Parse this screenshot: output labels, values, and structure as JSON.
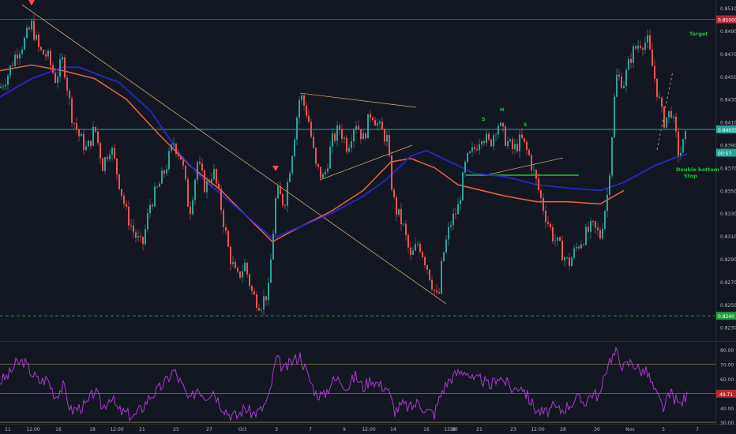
{
  "chart_data": {
    "type": "candlestick",
    "symbol_note": "",
    "price_axis": {
      "ticks": [
        0.851,
        0.849,
        0.847,
        0.845,
        0.843,
        0.841,
        0.839,
        0.837,
        0.835,
        0.833,
        0.831,
        0.829,
        0.827,
        0.825,
        0.823
      ],
      "tick_labels": [
        "0.85100",
        "0.84900",
        "0.84700",
        "0.84500",
        "0.84300",
        "0.84100",
        "0.83900",
        "0.83700",
        "0.83500",
        "0.83300",
        "0.83100",
        "0.82900",
        "0.82700",
        "0.82500",
        "0.82300"
      ],
      "range": [
        0.8218,
        0.8517
      ]
    },
    "price_badges": [
      {
        "label": "0.85000",
        "value": 0.85,
        "color": "#b22833"
      },
      {
        "label": "0.84035",
        "value": 0.84035,
        "color": "#26a69a"
      },
      {
        "label": "00:57",
        "value": 0.839,
        "color": "#26a69a"
      },
      {
        "label": "0.8240",
        "value": 0.824,
        "color": "#1f9e3a"
      }
    ],
    "levels": [
      {
        "name": "target-level",
        "value": 0.85,
        "color": "#b22833",
        "style": "solid"
      },
      {
        "name": "current-price-level",
        "value": 0.84035,
        "color": "#26a69a",
        "style": "solid"
      },
      {
        "name": "stop-level",
        "value": 0.824,
        "color": "#1f9e3a",
        "style": "dashed"
      }
    ],
    "x_axis_labels": [
      "11",
      "12:00",
      "16",
      "18",
      "12:00",
      "21",
      "25",
      "27",
      "Oct",
      "3",
      "7",
      "9",
      "12:00",
      "14",
      "16",
      "18",
      "12:00",
      "21",
      "23",
      "12:00",
      "28",
      "30",
      "Nov",
      "5",
      "7"
    ],
    "annotations": [
      "Target",
      "Double bottom",
      "Stop",
      "S",
      "H",
      "S"
    ],
    "close_path": [
      [
        0,
        0.844
      ],
      [
        10,
        0.8452
      ],
      [
        20,
        0.847
      ],
      [
        30,
        0.848
      ],
      [
        40,
        0.8495
      ],
      [
        50,
        0.8472
      ],
      [
        60,
        0.8468
      ],
      [
        70,
        0.8448
      ],
      [
        80,
        0.8465
      ],
      [
        90,
        0.8418
      ],
      [
        100,
        0.8398
      ],
      [
        110,
        0.8385
      ],
      [
        120,
        0.8405
      ],
      [
        130,
        0.8372
      ],
      [
        140,
        0.839
      ],
      [
        150,
        0.836
      ],
      [
        160,
        0.833
      ],
      [
        170,
        0.8312
      ],
      [
        180,
        0.83
      ],
      [
        190,
        0.8338
      ],
      [
        200,
        0.8352
      ],
      [
        210,
        0.837
      ],
      [
        220,
        0.8392
      ],
      [
        230,
        0.8378
      ],
      [
        240,
        0.833
      ],
      [
        250,
        0.8375
      ],
      [
        260,
        0.8352
      ],
      [
        270,
        0.8368
      ],
      [
        280,
        0.8335
      ],
      [
        290,
        0.8295
      ],
      [
        300,
        0.8272
      ],
      [
        310,
        0.8285
      ],
      [
        320,
        0.8258
      ],
      [
        330,
        0.825
      ],
      [
        340,
        0.8262
      ],
      [
        350,
        0.835
      ],
      [
        360,
        0.8338
      ],
      [
        370,
        0.8385
      ],
      [
        380,
        0.8435
      ],
      [
        390,
        0.8415
      ],
      [
        400,
        0.837
      ],
      [
        410,
        0.836
      ],
      [
        420,
        0.8392
      ],
      [
        430,
        0.8405
      ],
      [
        440,
        0.8388
      ],
      [
        450,
        0.8412
      ],
      [
        460,
        0.8395
      ],
      [
        470,
        0.842
      ],
      [
        480,
        0.8405
      ],
      [
        490,
        0.8395
      ],
      [
        495,
        0.836
      ],
      [
        500,
        0.8335
      ],
      [
        510,
        0.832
      ],
      [
        520,
        0.829
      ],
      [
        530,
        0.8305
      ],
      [
        540,
        0.8285
      ],
      [
        550,
        0.8262
      ],
      [
        555,
        0.8252
      ],
      [
        560,
        0.829
      ],
      [
        570,
        0.832
      ],
      [
        580,
        0.8335
      ],
      [
        590,
        0.8375
      ],
      [
        600,
        0.8385
      ],
      [
        610,
        0.84
      ],
      [
        620,
        0.839
      ],
      [
        630,
        0.841
      ],
      [
        640,
        0.8395
      ],
      [
        650,
        0.8385
      ],
      [
        660,
        0.8395
      ],
      [
        670,
        0.838
      ],
      [
        680,
        0.8355
      ],
      [
        690,
        0.833
      ],
      [
        700,
        0.831
      ],
      [
        710,
        0.8298
      ],
      [
        720,
        0.8285
      ],
      [
        730,
        0.83
      ],
      [
        740,
        0.831
      ],
      [
        750,
        0.8318
      ],
      [
        760,
        0.831
      ],
      [
        770,
        0.835
      ],
      [
        780,
        0.845
      ],
      [
        790,
        0.8445
      ],
      [
        800,
        0.847
      ],
      [
        810,
        0.848
      ],
      [
        820,
        0.848
      ],
      [
        830,
        0.8445
      ],
      [
        840,
        0.841
      ],
      [
        850,
        0.842
      ],
      [
        860,
        0.838
      ],
      [
        870,
        0.84
      ]
    ],
    "ma_slow": [
      [
        0,
        0.8455
      ],
      [
        40,
        0.846
      ],
      [
        80,
        0.8455
      ],
      [
        120,
        0.8448
      ],
      [
        160,
        0.843
      ],
      [
        200,
        0.84
      ],
      [
        240,
        0.8372
      ],
      [
        280,
        0.835
      ],
      [
        320,
        0.8322
      ],
      [
        345,
        0.8305
      ],
      [
        380,
        0.8318
      ],
      [
        420,
        0.8332
      ],
      [
        460,
        0.835
      ],
      [
        495,
        0.8375
      ],
      [
        520,
        0.8378
      ],
      [
        550,
        0.837
      ],
      [
        580,
        0.8355
      ],
      [
        610,
        0.835
      ],
      [
        640,
        0.8345
      ],
      [
        680,
        0.834
      ],
      [
        720,
        0.834
      ],
      [
        760,
        0.8338
      ],
      [
        790,
        0.835
      ]
    ],
    "ma_fast": [
      [
        0,
        0.8432
      ],
      [
        40,
        0.8448
      ],
      [
        80,
        0.8458
      ],
      [
        100,
        0.8458
      ],
      [
        130,
        0.845
      ],
      [
        150,
        0.8445
      ],
      [
        190,
        0.842
      ],
      [
        230,
        0.838
      ],
      [
        260,
        0.8358
      ],
      [
        300,
        0.8335
      ],
      [
        345,
        0.8308
      ],
      [
        380,
        0.8318
      ],
      [
        420,
        0.833
      ],
      [
        460,
        0.8345
      ],
      [
        490,
        0.836
      ],
      [
        520,
        0.838
      ],
      [
        540,
        0.8385
      ],
      [
        570,
        0.8375
      ],
      [
        600,
        0.8365
      ],
      [
        640,
        0.8362
      ],
      [
        680,
        0.8355
      ],
      [
        720,
        0.8352
      ],
      [
        760,
        0.835
      ],
      [
        790,
        0.8357
      ],
      [
        830,
        0.8372
      ],
      [
        860,
        0.838
      ],
      [
        870,
        0.8382
      ]
    ],
    "rsi": {
      "ticks": [
        80,
        70,
        60,
        50,
        40,
        30
      ],
      "tick_labels": [
        "80.00",
        "70.00",
        "60.00",
        "50.00",
        "40.00",
        "30.00"
      ],
      "levels": [
        70,
        50,
        30
      ],
      "badge": {
        "label": "49.71",
        "value": 49.71
      },
      "range": [
        29,
        85
      ],
      "values": [
        [
          0,
          58
        ],
        [
          10,
          62
        ],
        [
          20,
          70
        ],
        [
          30,
          72
        ],
        [
          40,
          64
        ],
        [
          50,
          58
        ],
        [
          60,
          60
        ],
        [
          70,
          48
        ],
        [
          80,
          55
        ],
        [
          90,
          38
        ],
        [
          100,
          40
        ],
        [
          110,
          42
        ],
        [
          120,
          52
        ],
        [
          130,
          40
        ],
        [
          140,
          48
        ],
        [
          150,
          38
        ],
        [
          160,
          36
        ],
        [
          170,
          34
        ],
        [
          180,
          40
        ],
        [
          190,
          48
        ],
        [
          200,
          52
        ],
        [
          210,
          58
        ],
        [
          220,
          66
        ],
        [
          230,
          56
        ],
        [
          240,
          44
        ],
        [
          250,
          54
        ],
        [
          260,
          48
        ],
        [
          270,
          52
        ],
        [
          280,
          42
        ],
        [
          290,
          36
        ],
        [
          300,
          34
        ],
        [
          310,
          40
        ],
        [
          320,
          36
        ],
        [
          330,
          38
        ],
        [
          340,
          46
        ],
        [
          350,
          74
        ],
        [
          360,
          66
        ],
        [
          370,
          72
        ],
        [
          380,
          76
        ],
        [
          390,
          62
        ],
        [
          400,
          50
        ],
        [
          410,
          48
        ],
        [
          420,
          58
        ],
        [
          430,
          60
        ],
        [
          440,
          54
        ],
        [
          450,
          62
        ],
        [
          460,
          54
        ],
        [
          470,
          60
        ],
        [
          480,
          56
        ],
        [
          490,
          54
        ],
        [
          500,
          38
        ],
        [
          510,
          42
        ],
        [
          520,
          40
        ],
        [
          530,
          44
        ],
        [
          540,
          38
        ],
        [
          550,
          36
        ],
        [
          560,
          52
        ],
        [
          570,
          60
        ],
        [
          580,
          64
        ],
        [
          590,
          66
        ],
        [
          600,
          58
        ],
        [
          610,
          60
        ],
        [
          620,
          54
        ],
        [
          630,
          62
        ],
        [
          640,
          58
        ],
        [
          650,
          52
        ],
        [
          660,
          56
        ],
        [
          670,
          46
        ],
        [
          680,
          38
        ],
        [
          690,
          36
        ],
        [
          700,
          40
        ],
        [
          710,
          38
        ],
        [
          720,
          42
        ],
        [
          730,
          46
        ],
        [
          740,
          44
        ],
        [
          750,
          50
        ],
        [
          760,
          48
        ],
        [
          770,
          72
        ],
        [
          780,
          78
        ],
        [
          790,
          68
        ],
        [
          800,
          72
        ],
        [
          810,
          66
        ],
        [
          820,
          64
        ],
        [
          830,
          50
        ],
        [
          840,
          40
        ],
        [
          850,
          50
        ],
        [
          860,
          42
        ],
        [
          870,
          48
        ]
      ]
    }
  }
}
